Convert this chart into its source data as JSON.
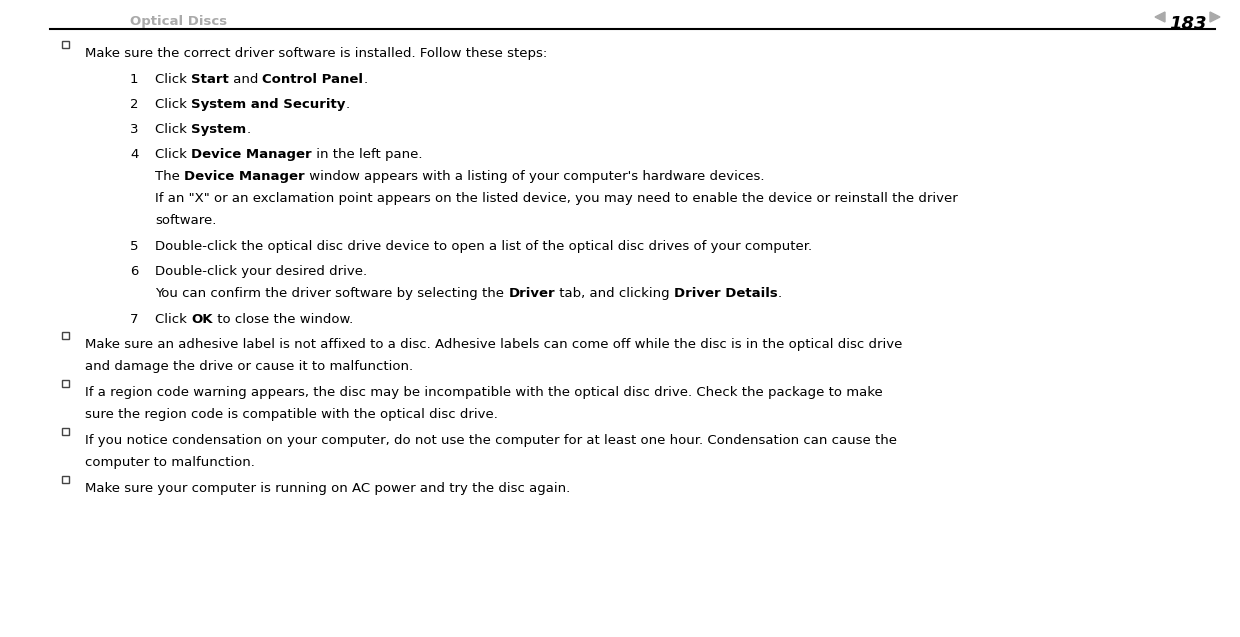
{
  "bg_color": "#ffffff",
  "header_text": "Optical Discs",
  "header_color": "#aaaaaa",
  "page_number": "183",
  "separator_color": "#000000",
  "text_color": "#000000",
  "font_size": 9.5,
  "header_font_size": 9.5,
  "page_num_font_size": 13,
  "content": [
    {
      "type": "bullet",
      "text": "Make sure the correct driver software is installed. Follow these steps:"
    },
    {
      "type": "numbered",
      "num": "1",
      "parts": [
        {
          "bold": false,
          "text": "Click "
        },
        {
          "bold": true,
          "text": "Start"
        },
        {
          "bold": false,
          "text": " and "
        },
        {
          "bold": true,
          "text": "Control Panel"
        },
        {
          "bold": false,
          "text": "."
        }
      ]
    },
    {
      "type": "numbered",
      "num": "2",
      "parts": [
        {
          "bold": false,
          "text": "Click "
        },
        {
          "bold": true,
          "text": "System and Security"
        },
        {
          "bold": false,
          "text": "."
        }
      ]
    },
    {
      "type": "numbered",
      "num": "3",
      "parts": [
        {
          "bold": false,
          "text": "Click "
        },
        {
          "bold": true,
          "text": "System"
        },
        {
          "bold": false,
          "text": "."
        }
      ]
    },
    {
      "type": "numbered_multiline",
      "num": "4",
      "lines": [
        [
          {
            "bold": false,
            "text": "Click "
          },
          {
            "bold": true,
            "text": "Device Manager"
          },
          {
            "bold": false,
            "text": " in the left pane."
          }
        ],
        [
          {
            "bold": false,
            "text": "The "
          },
          {
            "bold": true,
            "text": "Device Manager"
          },
          {
            "bold": false,
            "text": " window appears with a listing of your computer's hardware devices."
          }
        ],
        [
          {
            "bold": false,
            "text": "If an \"X\" or an exclamation point appears on the listed device, you may need to enable the device or reinstall the driver"
          }
        ],
        [
          {
            "bold": false,
            "text": "software."
          }
        ]
      ]
    },
    {
      "type": "numbered",
      "num": "5",
      "parts": [
        {
          "bold": false,
          "text": "Double-click the optical disc drive device to open a list of the optical disc drives of your computer."
        }
      ]
    },
    {
      "type": "numbered_multiline",
      "num": "6",
      "lines": [
        [
          {
            "bold": false,
            "text": "Double-click your desired drive."
          }
        ],
        [
          {
            "bold": false,
            "text": "You can confirm the driver software by selecting the "
          },
          {
            "bold": true,
            "text": "Driver"
          },
          {
            "bold": false,
            "text": " tab, and clicking "
          },
          {
            "bold": true,
            "text": "Driver Details"
          },
          {
            "bold": false,
            "text": "."
          }
        ]
      ]
    },
    {
      "type": "numbered",
      "num": "7",
      "parts": [
        {
          "bold": false,
          "text": "Click "
        },
        {
          "bold": true,
          "text": "OK"
        },
        {
          "bold": false,
          "text": " to close the window."
        }
      ]
    },
    {
      "type": "bullet",
      "text": "Make sure an adhesive label is not affixed to a disc. Adhesive labels can come off while the disc is in the optical disc drive\nand damage the drive or cause it to malfunction."
    },
    {
      "type": "bullet",
      "text": "If a region code warning appears, the disc may be incompatible with the optical disc drive. Check the package to make\nsure the region code is compatible with the optical disc drive."
    },
    {
      "type": "bullet",
      "text": "If you notice condensation on your computer, do not use the computer for at least one hour. Condensation can cause the\ncomputer to malfunction."
    },
    {
      "type": "bullet",
      "text": "Make sure your computer is running on AC power and try the disc again."
    }
  ]
}
